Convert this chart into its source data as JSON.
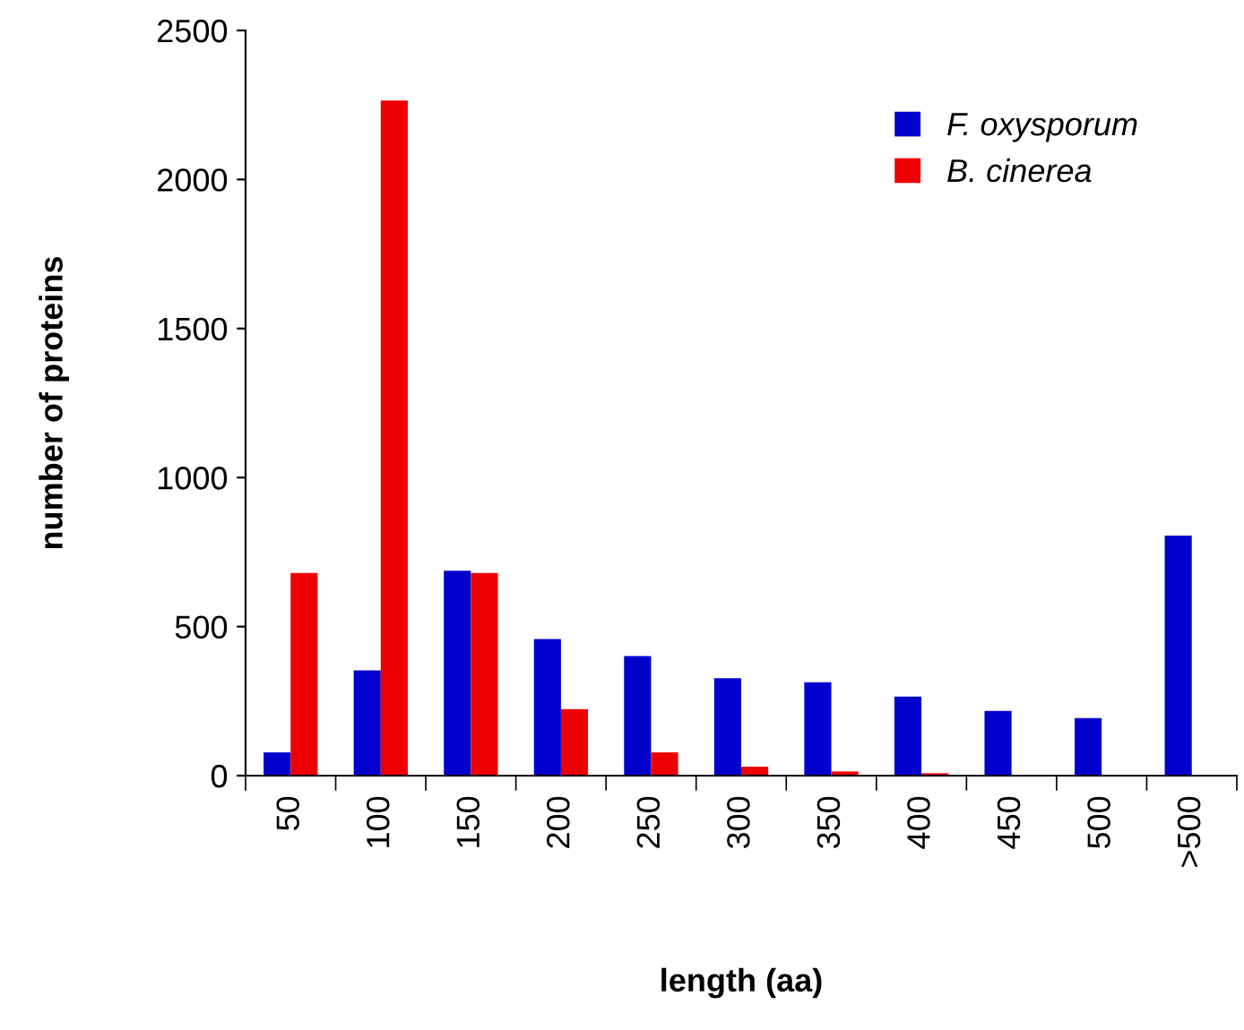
{
  "chart_data": {
    "type": "bar",
    "xlabel": "length (aa)",
    "ylabel": "number of proteins",
    "categories": [
      "50",
      "100",
      "150",
      "200",
      "250",
      "300",
      "350",
      "400",
      "450",
      "500",
      ">500"
    ],
    "series": [
      {
        "name": "F. oxysporum",
        "color": "#0000cc",
        "values": [
          78,
          353,
          687,
          458,
          401,
          327,
          313,
          265,
          217,
          193,
          805
        ]
      },
      {
        "name": "B. cinerea",
        "color": "#ee0000",
        "values": [
          680,
          2265,
          680,
          223,
          78,
          30,
          14,
          8,
          null,
          null,
          0
        ]
      }
    ],
    "ylim": [
      0,
      2500
    ],
    "yticks": [
      0,
      500,
      1000,
      1500,
      2000,
      2500
    ],
    "grid": false,
    "legend": "top right"
  }
}
